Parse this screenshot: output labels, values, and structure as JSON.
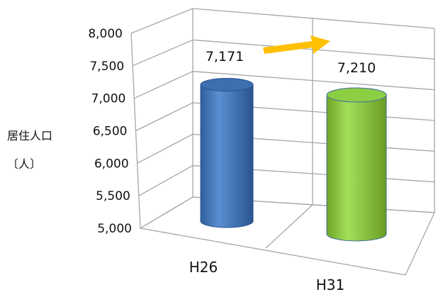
{
  "chart_data": {
    "type": "bar",
    "style": "3d-cylinder",
    "categories": [
      "H26",
      "H31"
    ],
    "values": [
      7171,
      7210
    ],
    "data_labels": [
      "7,171",
      "7,210"
    ],
    "ylabel_line1": "居住人口",
    "ylabel_line2": "〔人〕",
    "ylim": [
      5000,
      8000
    ],
    "yticks": [
      "5,000",
      "5,500",
      "6,000",
      "6,500",
      "7,000",
      "7,500",
      "8,000"
    ],
    "grid": true,
    "colors": {
      "H26": "#4f81bd",
      "H31": "#92d050",
      "arrow": "#ffc000",
      "grid": "#a6a6a6"
    }
  }
}
